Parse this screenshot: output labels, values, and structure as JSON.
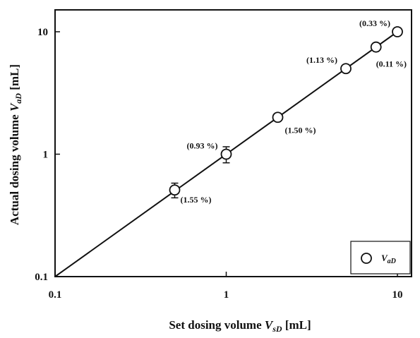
{
  "chart_data": {
    "type": "scatter",
    "xscale": "log",
    "yscale": "log",
    "xlim": [
      0.1,
      10
    ],
    "ylim": [
      0.1,
      10
    ],
    "grid": false,
    "legend_position": "bottom-right",
    "x_ticks": [
      "0.1",
      "1",
      "10"
    ],
    "y_ticks": [
      "0.1",
      "1",
      "10"
    ],
    "xlabel": {
      "prefix": "Set dosing volume ",
      "var": "V",
      "sub": "sD",
      "unit": " [mL]"
    },
    "ylabel": {
      "prefix": "Actual dosing volume ",
      "var": "V",
      "sub": "aD",
      "unit": " [mL]"
    },
    "series": [
      {
        "name": {
          "var": "V",
          "sub": "aD"
        },
        "marker": "open-circle",
        "points": [
          {
            "x": 0.5,
            "y": 0.51,
            "err_low": 0.44,
            "err_high": 0.58,
            "label": "(1.55 %)"
          },
          {
            "x": 1.0,
            "y": 1.0,
            "err_low": 0.85,
            "err_high": 1.15,
            "label": "(0.93 %)"
          },
          {
            "x": 2.0,
            "y": 2.0,
            "label": "(1.50 %)"
          },
          {
            "x": 5.0,
            "y": 5.0,
            "label": "(1.13 %)"
          },
          {
            "x": 7.5,
            "y": 7.5,
            "label": "(0.11 %)"
          },
          {
            "x": 10.0,
            "y": 10.0,
            "label": "(0.33 %)"
          }
        ]
      }
    ],
    "reference_line": {
      "from": [
        0.1,
        0.1
      ],
      "to": [
        10,
        10
      ]
    }
  }
}
